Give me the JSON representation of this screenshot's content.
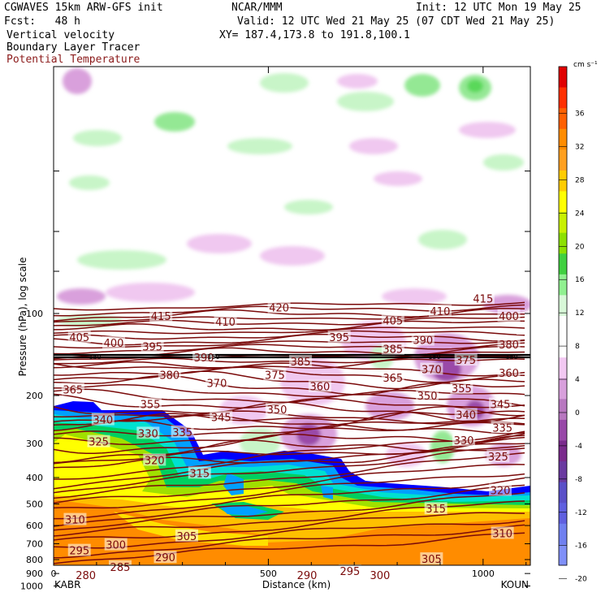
{
  "header": {
    "model": "CGWAVES 15km ARW-GFS init",
    "org": "NCAR/MMM",
    "init": "Init: 12 UTC Mon 19 May 25",
    "fcst": "Fcst:   48 h",
    "valid": "Valid: 12 UTC Wed 21 May 25 (07 CDT Wed 21 May 25)",
    "field1": "Vertical velocity",
    "field2": "Boundary Layer Tracer",
    "xy": "XY= 187.4,173.8 to 191.8,100.1",
    "field3": "Potential Temperature"
  },
  "colors": {
    "isentrope": "#7a0a0a",
    "pos_w": [
      "#c8f5c8",
      "#94e894",
      "#5ad85a"
    ],
    "neg_w": [
      "#f0c8f0",
      "#d9a0dc",
      "#b870c0",
      "#9a4aa8",
      "#7a2a8c"
    ],
    "tracer": [
      "#0000ff",
      "#00a0ff",
      "#00e0d0",
      "#00d060",
      "#a0e000",
      "#ffff00",
      "#ffc000",
      "#ff8c00"
    ]
  },
  "chart_data": {
    "type": "heatmap",
    "title": "Vertical velocity / Boundary Layer Tracer / Potential Temperature",
    "xlabel": "Distance (km)",
    "ylabel": "Pressure (hPa), log scale",
    "x_ticks": [
      "0",
      "500",
      "1000"
    ],
    "y_ticks": [
      "100",
      "200",
      "300",
      "400",
      "500",
      "600",
      "700",
      "800",
      "900",
      "1000"
    ],
    "xlim": [
      0,
      1110
    ],
    "x_endpoints": {
      "left": "KABR",
      "right": "KOUN"
    },
    "colorbar": {
      "unit": "cm s⁻¹",
      "levels": [
        "36",
        "32",
        "28",
        "24",
        "20",
        "16",
        "12",
        "8",
        "4",
        "0",
        "-4",
        "-8",
        "-12",
        "-16",
        "-20"
      ],
      "colors": [
        "#e00000",
        "#ff3000",
        "#ff6000",
        "#ff8c00",
        "#ffa020",
        "#ffcc00",
        "#ffff00",
        "#c8f000",
        "#8ce000",
        "#40d040",
        "#90f090",
        "#d8f8d8",
        "#ffffff",
        "#ffffff",
        "#f2c8f2",
        "#d8a0dc",
        "#b878c0",
        "#9848a8",
        "#7a2a8c",
        "#6a3aa0",
        "#5a50c8",
        "#6060e0",
        "#7080f0",
        "#8090f8"
      ]
    },
    "isentrope_labels": [
      {
        "text": "420",
        "x": 525,
        "p": 95
      },
      {
        "text": "415",
        "x": 250,
        "p": 102
      },
      {
        "text": "415",
        "x": 1000,
        "p": 88
      },
      {
        "text": "410",
        "x": 400,
        "p": 107
      },
      {
        "text": "410",
        "x": 900,
        "p": 98
      },
      {
        "text": "405",
        "x": 60,
        "p": 122
      },
      {
        "text": "405",
        "x": 790,
        "p": 106
      },
      {
        "text": "400",
        "x": 140,
        "p": 128
      },
      {
        "text": "400",
        "x": 1060,
        "p": 102
      },
      {
        "text": "395",
        "x": 230,
        "p": 132
      },
      {
        "text": "395",
        "x": 665,
        "p": 122
      },
      {
        "text": "390",
        "x": 350,
        "p": 145
      },
      {
        "text": "390",
        "x": 860,
        "p": 125
      },
      {
        "text": "385",
        "x": 575,
        "p": 150
      },
      {
        "text": "385",
        "x": 790,
        "p": 135
      },
      {
        "text": "380",
        "x": 270,
        "p": 168
      },
      {
        "text": "380",
        "x": 1060,
        "p": 130
      },
      {
        "text": "375",
        "x": 515,
        "p": 168
      },
      {
        "text": "375",
        "x": 960,
        "p": 148
      },
      {
        "text": "370",
        "x": 380,
        "p": 180
      },
      {
        "text": "370",
        "x": 880,
        "p": 160
      },
      {
        "text": "365",
        "x": 45,
        "p": 190
      },
      {
        "text": "365",
        "x": 790,
        "p": 172
      },
      {
        "text": "360",
        "x": 620,
        "p": 185
      },
      {
        "text": "360",
        "x": 1060,
        "p": 165
      },
      {
        "text": "355",
        "x": 225,
        "p": 215
      },
      {
        "text": "355",
        "x": 950,
        "p": 188
      },
      {
        "text": "350",
        "x": 520,
        "p": 225
      },
      {
        "text": "350",
        "x": 870,
        "p": 200
      },
      {
        "text": "345",
        "x": 390,
        "p": 240
      },
      {
        "text": "345",
        "x": 1040,
        "p": 215
      },
      {
        "text": "340",
        "x": 115,
        "p": 245
      },
      {
        "text": "340",
        "x": 960,
        "p": 235
      },
      {
        "text": "335",
        "x": 300,
        "p": 272
      },
      {
        "text": "335",
        "x": 1045,
        "p": 262
      },
      {
        "text": "330",
        "x": 220,
        "p": 275
      },
      {
        "text": "330",
        "x": 955,
        "p": 292
      },
      {
        "text": "325",
        "x": 105,
        "p": 295
      },
      {
        "text": "325",
        "x": 1035,
        "p": 335
      },
      {
        "text": "320",
        "x": 235,
        "p": 345
      },
      {
        "text": "320",
        "x": 1040,
        "p": 445
      },
      {
        "text": "315",
        "x": 340,
        "p": 385
      },
      {
        "text": "315",
        "x": 890,
        "p": 520
      },
      {
        "text": "310",
        "x": 50,
        "p": 570
      },
      {
        "text": "310",
        "x": 1045,
        "p": 640
      },
      {
        "text": "305",
        "x": 310,
        "p": 655
      },
      {
        "text": "305",
        "x": 880,
        "p": 795
      },
      {
        "text": "300",
        "x": 145,
        "p": 705
      },
      {
        "text": "300",
        "x": 760,
        "p": 910
      },
      {
        "text": "295",
        "x": 60,
        "p": 740
      },
      {
        "text": "295",
        "x": 690,
        "p": 880
      },
      {
        "text": "290",
        "x": 260,
        "p": 785
      },
      {
        "text": "290",
        "x": 590,
        "p": 910
      },
      {
        "text": "285",
        "x": 155,
        "p": 850
      },
      {
        "text": "280",
        "x": 75,
        "p": 910
      }
    ],
    "tropopause_label": "150",
    "grid": false
  }
}
